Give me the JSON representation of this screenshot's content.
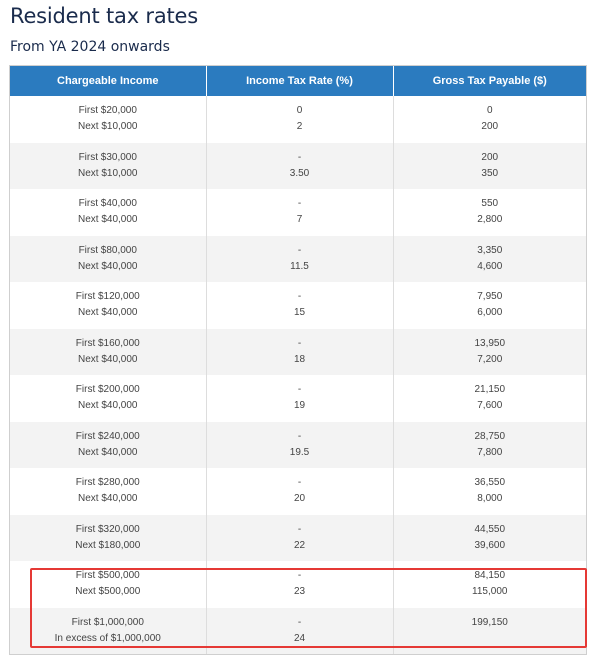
{
  "title": "Resident tax rates",
  "subtitle": "From YA 2024 onwards",
  "table": {
    "headers": [
      "Chargeable Income",
      "Income Tax Rate (%)",
      "Gross Tax Payable ($)"
    ],
    "rows": [
      {
        "income": [
          "First $20,000",
          "Next $10,000"
        ],
        "rate": [
          "0",
          "2"
        ],
        "tax": [
          "0",
          "200"
        ]
      },
      {
        "income": [
          "First $30,000",
          "Next $10,000"
        ],
        "rate": [
          "-",
          "3.50"
        ],
        "tax": [
          "200",
          "350"
        ]
      },
      {
        "income": [
          "First $40,000",
          "Next $40,000"
        ],
        "rate": [
          "-",
          "7"
        ],
        "tax": [
          "550",
          "2,800"
        ]
      },
      {
        "income": [
          "First $80,000",
          "Next $40,000"
        ],
        "rate": [
          "-",
          "11.5"
        ],
        "tax": [
          "3,350",
          "4,600"
        ]
      },
      {
        "income": [
          "First $120,000",
          "Next $40,000"
        ],
        "rate": [
          "-",
          "15"
        ],
        "tax": [
          "7,950",
          "6,000"
        ]
      },
      {
        "income": [
          "First $160,000",
          "Next $40,000"
        ],
        "rate": [
          "-",
          "18"
        ],
        "tax": [
          "13,950",
          "7,200"
        ]
      },
      {
        "income": [
          "First $200,000",
          "Next $40,000"
        ],
        "rate": [
          "-",
          "19"
        ],
        "tax": [
          "21,150",
          "7,600"
        ]
      },
      {
        "income": [
          "First $240,000",
          "Next $40,000"
        ],
        "rate": [
          "-",
          "19.5"
        ],
        "tax": [
          "28,750",
          "7,800"
        ]
      },
      {
        "income": [
          "First $280,000",
          "Next $40,000"
        ],
        "rate": [
          "-",
          "20"
        ],
        "tax": [
          "36,550",
          "8,000"
        ]
      },
      {
        "income": [
          "First $320,000",
          "Next $180,000"
        ],
        "rate": [
          "-",
          "22"
        ],
        "tax": [
          "44,550",
          "39,600"
        ]
      },
      {
        "income": [
          "First $500,000",
          "Next $500,000"
        ],
        "rate": [
          "-",
          "23"
        ],
        "tax": [
          "84,150",
          "115,000"
        ]
      },
      {
        "income": [
          "First $1,000,000",
          "In excess of $1,000,000"
        ],
        "rate": [
          "-",
          "24"
        ],
        "tax": [
          "199,150",
          ""
        ]
      }
    ]
  },
  "colors": {
    "header_bg": "#2b7bbf",
    "title": "#1a2b4c",
    "highlight": "#e53935"
  }
}
